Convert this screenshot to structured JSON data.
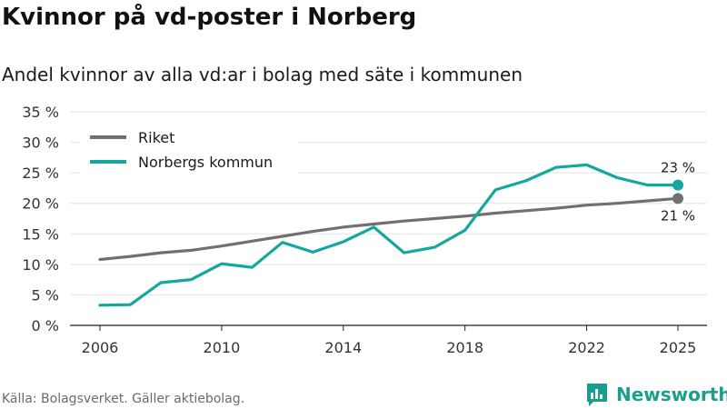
{
  "header": {
    "title": "Kvinnor på vd-poster i Norberg",
    "subtitle": "Andel kvinnor av alla vd:ar i bolag med säte i kommunen"
  },
  "footer": {
    "source": "Källa: Bolagsverket. Gäller aktiebolag.",
    "brand": "Newsworthy"
  },
  "colors": {
    "riket": "#707073",
    "norberg": "#13a89b",
    "grid": "#e3e3e3",
    "brand": "#1a9e8f"
  },
  "icons": {
    "brand_logo": "bar-chart-speech-bubble-icon"
  },
  "chart_data": {
    "type": "line",
    "title": "Kvinnor på vd-poster i Norberg",
    "subtitle": "Andel kvinnor av alla vd:ar i bolag med säte i kommunen",
    "xlabel": "",
    "ylabel": "",
    "xlim": [
      2006,
      2025
    ],
    "ylim": [
      0,
      35
    ],
    "y_ticks": [
      0,
      5,
      10,
      15,
      20,
      25,
      30,
      35
    ],
    "y_tick_labels": [
      "0 %",
      "5 %",
      "10 %",
      "15 %",
      "20 %",
      "25 %",
      "30 %",
      "35 %"
    ],
    "x_ticks": [
      2006,
      2010,
      2014,
      2018,
      2022,
      2025
    ],
    "x_tick_labels": [
      "2006",
      "2010",
      "2014",
      "2018",
      "2022",
      "2025"
    ],
    "grid": true,
    "legend_position": "top-left",
    "x": [
      2006,
      2007,
      2008,
      2009,
      2010,
      2011,
      2012,
      2013,
      2014,
      2015,
      2016,
      2017,
      2018,
      2019,
      2020,
      2021,
      2022,
      2023,
      2024,
      2025
    ],
    "series": [
      {
        "name": "Riket",
        "key": "riket",
        "values": [
          10.8,
          11.3,
          11.9,
          12.3,
          13.0,
          13.8,
          14.6,
          15.4,
          16.1,
          16.6,
          17.1,
          17.5,
          17.9,
          18.4,
          18.8,
          19.2,
          19.7,
          20.0,
          20.4,
          20.8
        ],
        "end_label": "21 %",
        "end_label_position": "below"
      },
      {
        "name": "Norbergs kommun",
        "key": "norberg",
        "values": [
          3.3,
          3.4,
          7.0,
          7.5,
          10.1,
          9.5,
          13.6,
          12.0,
          13.7,
          16.1,
          11.9,
          12.8,
          15.6,
          22.2,
          23.7,
          25.9,
          26.3,
          24.2,
          23.0,
          23.0
        ],
        "end_label": "23 %",
        "end_label_position": "above"
      }
    ]
  }
}
